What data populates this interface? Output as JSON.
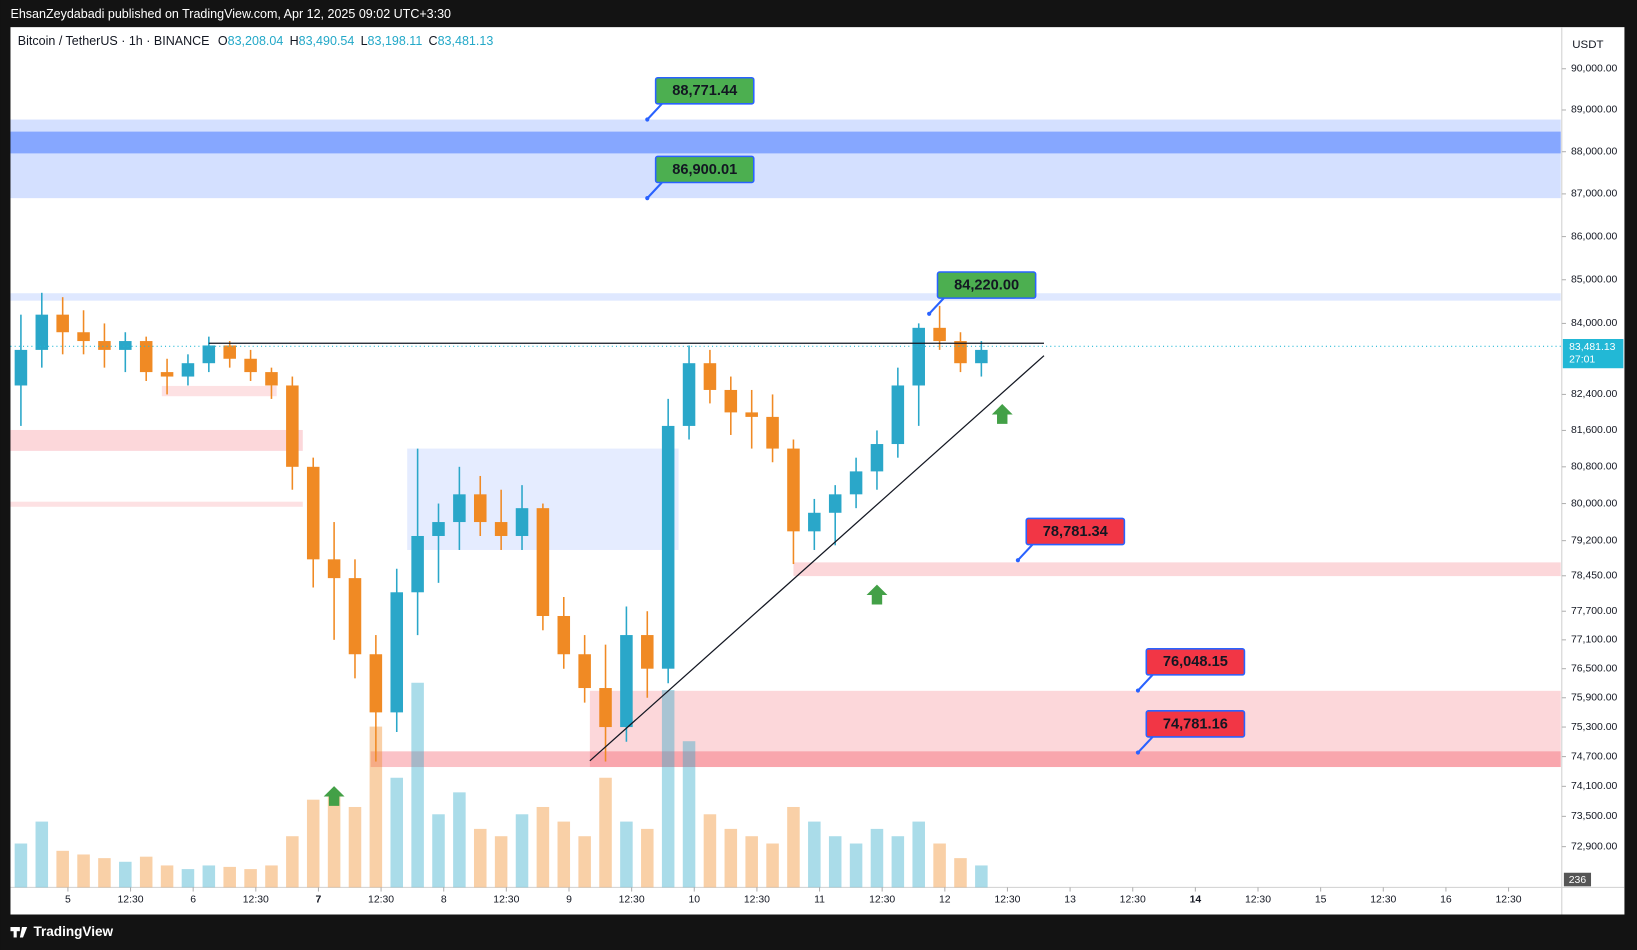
{
  "header": {
    "publisher": "EhsanZeydabadi published on TradingView.com, Apr 12, 2025 09:02 UTC+3:30",
    "symbol": "Bitcoin / TetherUS · 1h · BINANCE",
    "ohlc": [
      {
        "key": "O",
        "value": "83,208.04"
      },
      {
        "key": "H",
        "value": "83,490.54"
      },
      {
        "key": "L",
        "value": "83,198.11"
      },
      {
        "key": "C",
        "value": "83,481.13"
      }
    ],
    "currency": "USDT"
  },
  "chart_data": {
    "type": "candlestick",
    "log_scale": true,
    "ylim": [
      72100,
      91020
    ],
    "yticks": [
      {
        "value": 90000,
        "label": "90,000.00"
      },
      {
        "value": 89000,
        "label": "89,000.00"
      },
      {
        "value": 88000,
        "label": "88,000.00"
      },
      {
        "value": 87000,
        "label": "87,000.00"
      },
      {
        "value": 86000,
        "label": "86,000.00"
      },
      {
        "value": 85000,
        "label": "85,000.00"
      },
      {
        "value": 84000,
        "label": "84,000.00"
      },
      {
        "value": 82400,
        "label": "82,400.00"
      },
      {
        "value": 81600,
        "label": "81,600.00"
      },
      {
        "value": 80800,
        "label": "80,800.00"
      },
      {
        "value": 80000,
        "label": "80,000.00"
      },
      {
        "value": 79200,
        "label": "79,200.00"
      },
      {
        "value": 78450,
        "label": "78,450.00"
      },
      {
        "value": 77700,
        "label": "77,700.00"
      },
      {
        "value": 77100,
        "label": "77,100.00"
      },
      {
        "value": 76500,
        "label": "76,500.00"
      },
      {
        "value": 75900,
        "label": "75,900.00"
      },
      {
        "value": 75300,
        "label": "75,300.00"
      },
      {
        "value": 74700,
        "label": "74,700.00"
      },
      {
        "value": 74100,
        "label": "74,100.00"
      },
      {
        "value": 73500,
        "label": "73,500.00"
      },
      {
        "value": 72900,
        "label": "72,900.00"
      }
    ],
    "xticks": [
      "5",
      "12:30",
      "6",
      "12:30",
      "7",
      "12:30",
      "8",
      "12:30",
      "9",
      "12:30",
      "10",
      "12:30",
      "11",
      "12:30",
      "12",
      "12:30",
      "13",
      "12:30",
      "14",
      "12:30",
      "15",
      "12:30",
      "16",
      "12:30"
    ],
    "up_color": "#2aa7c9",
    "down_color": "#f08a24",
    "open": [
      82600,
      83400,
      84200,
      83800,
      83600,
      83400,
      83600,
      82900,
      82800,
      83100,
      83500,
      83200,
      82900,
      82600,
      80800,
      78800,
      78400,
      76800,
      75600,
      78100,
      79300,
      79600,
      80200,
      79600,
      79300,
      79900,
      77600,
      76800,
      76100,
      75300,
      77200,
      76500,
      81700,
      83100,
      82500,
      82000,
      81900,
      81200,
      79400,
      79800,
      80200,
      80700,
      81300,
      82600,
      83900,
      83600,
      83100
    ],
    "high": [
      84200,
      84700,
      84600,
      84300,
      84000,
      83800,
      83700,
      83200,
      83300,
      83700,
      83600,
      83400,
      83000,
      82800,
      81000,
      79600,
      78800,
      77200,
      78600,
      81200,
      80000,
      80800,
      80600,
      80300,
      80400,
      80000,
      78000,
      77200,
      77000,
      77800,
      77700,
      82300,
      83500,
      83400,
      82800,
      82500,
      82400,
      81400,
      80100,
      80400,
      81000,
      81600,
      83000,
      84000,
      84400,
      83800,
      83600
    ],
    "low": [
      81700,
      83000,
      83300,
      83300,
      83000,
      82900,
      82700,
      82400,
      82600,
      82900,
      83000,
      82700,
      82300,
      80300,
      78200,
      77100,
      76300,
      74600,
      75200,
      77200,
      78300,
      79000,
      79300,
      79000,
      79000,
      77300,
      76500,
      75800,
      74600,
      75000,
      75900,
      76200,
      81400,
      82200,
      81500,
      81200,
      80900,
      78700,
      79000,
      79100,
      79900,
      80300,
      81000,
      81700,
      83400,
      82900,
      82800
    ],
    "close": [
      83400,
      84200,
      83800,
      83600,
      83400,
      83600,
      82900,
      82800,
      83100,
      83500,
      83200,
      82900,
      82600,
      80800,
      78800,
      78400,
      76800,
      75600,
      78100,
      79300,
      79600,
      80200,
      79600,
      79300,
      79900,
      77600,
      76800,
      76100,
      75300,
      77200,
      76500,
      81700,
      83100,
      82500,
      82000,
      81900,
      81200,
      79400,
      79800,
      80200,
      80700,
      81300,
      82600,
      83900,
      83600,
      83100,
      83400
    ],
    "volumes": [
      600,
      900,
      500,
      450,
      400,
      350,
      420,
      300,
      250,
      300,
      280,
      250,
      300,
      700,
      1200,
      1300,
      1100,
      2200,
      1500,
      2800,
      1000,
      1300,
      800,
      700,
      1000,
      1100,
      900,
      700,
      1500,
      900,
      800,
      2700,
      2000,
      1000,
      800,
      700,
      600,
      1100,
      900,
      700,
      600,
      800,
      700,
      900,
      600,
      400,
      300
    ],
    "volume_ylim": [
      0,
      3000
    ],
    "volume_label": {
      "value": 236,
      "label": "236"
    },
    "last_price": {
      "value": 83481.13,
      "label": "83,481.13",
      "countdown": "27:01",
      "color": "#22b8d6"
    },
    "zones": [
      {
        "from": 0,
        "to": 74.25,
        "low": 86900,
        "high": 88770,
        "color": "rgba(41,98,255,0.2)"
      },
      {
        "from": 0,
        "to": 74.25,
        "low": 87960,
        "high": 88480,
        "color": "rgba(41,98,255,0.45)"
      },
      {
        "from": 0,
        "to": 74.25,
        "low": 84520,
        "high": 84690,
        "color": "rgba(41,98,255,0.15)"
      },
      {
        "from": 19,
        "to": 32,
        "low": 79000,
        "high": 81200,
        "color": "rgba(41,98,255,0.12)"
      },
      {
        "from": 7.25,
        "to": 12.75,
        "low": 82360,
        "high": 82590,
        "color": "rgba(242,54,69,0.15)"
      },
      {
        "from": 0,
        "to": 14,
        "low": 81150,
        "high": 81610,
        "color": "rgba(242,54,69,0.2)"
      },
      {
        "from": 0,
        "to": 14,
        "low": 79930,
        "high": 80040,
        "color": "rgba(242,54,69,0.15)"
      },
      {
        "from": 37.5,
        "to": 74.25,
        "low": 78443,
        "high": 78735,
        "color": "rgba(242,54,69,0.2)"
      },
      {
        "from": 27.75,
        "to": 74.25,
        "low": 74489,
        "high": 76043,
        "color": "rgba(242,54,69,0.2)"
      },
      {
        "from": 17.25,
        "to": 74.25,
        "low": 74489,
        "high": 74806,
        "color": "rgba(242,54,69,0.3)"
      }
    ],
    "levels": [
      {
        "value": 88771.44,
        "label": "88,771.44",
        "at": 30.5,
        "color": "#4caf50"
      },
      {
        "value": 86900.01,
        "label": "86,900.01",
        "at": 30.5,
        "color": "#4caf50"
      },
      {
        "value": 84220.0,
        "label": "84,220.00",
        "at": 44,
        "color": "#4caf50"
      },
      {
        "value": 78781.34,
        "label": "78,781.34",
        "at": 48.25,
        "color": "#f23645"
      },
      {
        "value": 76048.15,
        "label": "76,048.15",
        "at": 54,
        "color": "#f23645"
      },
      {
        "value": 74781.16,
        "label": "74,781.16",
        "at": 54,
        "color": "#f23645"
      }
    ],
    "resistance": {
      "value": 83550,
      "from": 9.5,
      "to": 49.5
    },
    "trendline": {
      "from": 27.75,
      "to": 49.5,
      "start": 74615,
      "end": 83270
    }
  },
  "footer": "TradingView"
}
